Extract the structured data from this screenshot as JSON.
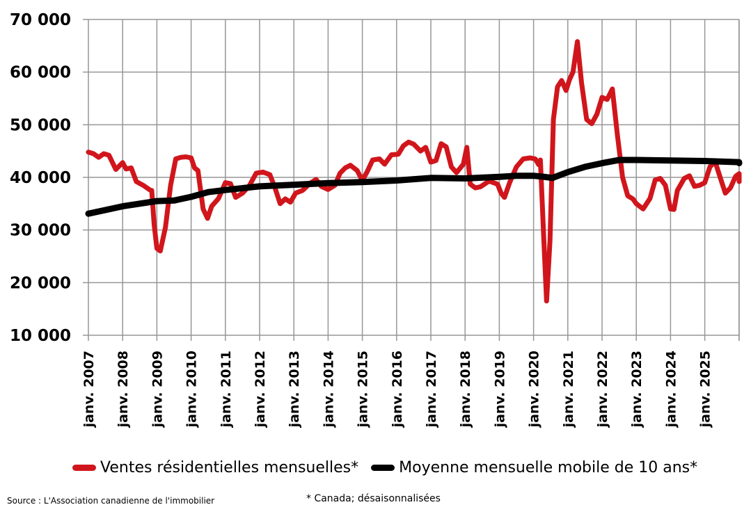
{
  "chart_data": {
    "type": "line",
    "title": "",
    "xlabel": "",
    "ylabel": "",
    "ylim": [
      10000,
      70000
    ],
    "yticks": [
      10000,
      20000,
      30000,
      40000,
      50000,
      60000,
      70000
    ],
    "ytick_labels": [
      "10 000",
      "20 000",
      "30 000",
      "40 000",
      "50 000",
      "60 000",
      "70 000"
    ],
    "xtick_labels": [
      "janv. 2007",
      "janv. 2008",
      "janv. 2009",
      "janv. 2010",
      "janv. 2011",
      "janv. 2012",
      "janv. 2013",
      "janv. 2014",
      "janv. 2015",
      "janv. 2016",
      "janv. 2017",
      "janv. 2018",
      "janv. 2019",
      "janv. 2020",
      "janv. 2021",
      "janv. 2022",
      "janv. 2023",
      "janv. 2024",
      "janv. 2025"
    ],
    "grid": true,
    "legend_position": "bottom",
    "x_start": "2007-01",
    "x_end": "2025-12",
    "series": [
      {
        "name": "Ventes résidentielles mensuelles*",
        "color": "#d0161c",
        "points": [
          [
            2007.0,
            44800
          ],
          [
            2007.15,
            44500
          ],
          [
            2007.3,
            43800
          ],
          [
            2007.45,
            44500
          ],
          [
            2007.6,
            44200
          ],
          [
            2007.8,
            41500
          ],
          [
            2008.0,
            42800
          ],
          [
            2008.1,
            41600
          ],
          [
            2008.25,
            41800
          ],
          [
            2008.4,
            39200
          ],
          [
            2008.6,
            38500
          ],
          [
            2008.8,
            37600
          ],
          [
            2008.85,
            37500
          ],
          [
            2008.92,
            31000
          ],
          [
            2009.0,
            26500
          ],
          [
            2009.1,
            26000
          ],
          [
            2009.25,
            30500
          ],
          [
            2009.4,
            38500
          ],
          [
            2009.55,
            43500
          ],
          [
            2009.7,
            43800
          ],
          [
            2009.85,
            43900
          ],
          [
            2010.0,
            43700
          ],
          [
            2010.1,
            41800
          ],
          [
            2010.2,
            41300
          ],
          [
            2010.35,
            34000
          ],
          [
            2010.48,
            32200
          ],
          [
            2010.6,
            34500
          ],
          [
            2010.8,
            36000
          ],
          [
            2011.0,
            39000
          ],
          [
            2011.15,
            38800
          ],
          [
            2011.3,
            36200
          ],
          [
            2011.5,
            37000
          ],
          [
            2011.7,
            38400
          ],
          [
            2011.9,
            40800
          ],
          [
            2012.1,
            41000
          ],
          [
            2012.3,
            40500
          ],
          [
            2012.45,
            38000
          ],
          [
            2012.6,
            35000
          ],
          [
            2012.75,
            35900
          ],
          [
            2012.9,
            35300
          ],
          [
            2013.05,
            37000
          ],
          [
            2013.25,
            37500
          ],
          [
            2013.5,
            39000
          ],
          [
            2013.65,
            39600
          ],
          [
            2013.8,
            38300
          ],
          [
            2014.0,
            37700
          ],
          [
            2014.2,
            38500
          ],
          [
            2014.35,
            40800
          ],
          [
            2014.5,
            41800
          ],
          [
            2014.65,
            42300
          ],
          [
            2014.85,
            41300
          ],
          [
            2015.0,
            39400
          ],
          [
            2015.15,
            41200
          ],
          [
            2015.3,
            43300
          ],
          [
            2015.5,
            43500
          ],
          [
            2015.65,
            42500
          ],
          [
            2015.85,
            44300
          ],
          [
            2016.05,
            44400
          ],
          [
            2016.2,
            46000
          ],
          [
            2016.35,
            46700
          ],
          [
            2016.5,
            46300
          ],
          [
            2016.7,
            45000
          ],
          [
            2016.85,
            45700
          ],
          [
            2017.0,
            42900
          ],
          [
            2017.15,
            43200
          ],
          [
            2017.3,
            46400
          ],
          [
            2017.45,
            45800
          ],
          [
            2017.6,
            42000
          ],
          [
            2017.75,
            40900
          ],
          [
            2017.95,
            42500
          ],
          [
            2018.05,
            45700
          ],
          [
            2018.15,
            38700
          ],
          [
            2018.3,
            38000
          ],
          [
            2018.45,
            38200
          ],
          [
            2018.7,
            39300
          ],
          [
            2018.95,
            38700
          ],
          [
            2019.05,
            37000
          ],
          [
            2019.15,
            36200
          ],
          [
            2019.3,
            39000
          ],
          [
            2019.5,
            42000
          ],
          [
            2019.7,
            43500
          ],
          [
            2019.9,
            43700
          ],
          [
            2020.05,
            43500
          ],
          [
            2020.15,
            42400
          ],
          [
            2020.2,
            43300
          ],
          [
            2020.3,
            28000
          ],
          [
            2020.38,
            16500
          ],
          [
            2020.48,
            28000
          ],
          [
            2020.58,
            51000
          ],
          [
            2020.7,
            57200
          ],
          [
            2020.82,
            58400
          ],
          [
            2020.95,
            56500
          ],
          [
            2021.05,
            58600
          ],
          [
            2021.15,
            60000
          ],
          [
            2021.28,
            65800
          ],
          [
            2021.4,
            58000
          ],
          [
            2021.55,
            51000
          ],
          [
            2021.7,
            50200
          ],
          [
            2021.85,
            52000
          ],
          [
            2022.0,
            55200
          ],
          [
            2022.15,
            54800
          ],
          [
            2022.3,
            56800
          ],
          [
            2022.45,
            48000
          ],
          [
            2022.6,
            40000
          ],
          [
            2022.75,
            36500
          ],
          [
            2022.9,
            35900
          ],
          [
            2023.0,
            35000
          ],
          [
            2023.1,
            34500
          ],
          [
            2023.2,
            34000
          ],
          [
            2023.4,
            36000
          ],
          [
            2023.55,
            39500
          ],
          [
            2023.7,
            39800
          ],
          [
            2023.85,
            38500
          ],
          [
            2024.0,
            34000
          ],
          [
            2024.1,
            33900
          ],
          [
            2024.2,
            37500
          ],
          [
            2024.4,
            39800
          ],
          [
            2024.55,
            40300
          ],
          [
            2024.7,
            38300
          ],
          [
            2024.85,
            38500
          ],
          [
            2025.0,
            39000
          ],
          [
            2025.15,
            42000
          ],
          [
            2025.3,
            43000
          ],
          [
            2025.45,
            40000
          ],
          [
            2025.6,
            37000
          ],
          [
            2025.75,
            38000
          ],
          [
            2025.9,
            40200
          ],
          [
            2026.05,
            40700
          ],
          [
            2026.15,
            40000
          ],
          [
            2026.3,
            40500
          ],
          [
            2026.4,
            39200
          ]
        ]
      },
      {
        "name": "Moyenne mensuelle mobile de 10 ans*",
        "color": "#000000",
        "points": [
          [
            2007.0,
            33100
          ],
          [
            2008.0,
            34500
          ],
          [
            2009.0,
            35500
          ],
          [
            2009.5,
            35600
          ],
          [
            2010.0,
            36300
          ],
          [
            2010.5,
            37200
          ],
          [
            2011.0,
            37600
          ],
          [
            2012.0,
            38300
          ],
          [
            2013.0,
            38600
          ],
          [
            2014.0,
            38900
          ],
          [
            2015.0,
            39100
          ],
          [
            2016.0,
            39400
          ],
          [
            2017.0,
            39900
          ],
          [
            2018.0,
            39800
          ],
          [
            2019.0,
            40100
          ],
          [
            2019.5,
            40300
          ],
          [
            2020.0,
            40300
          ],
          [
            2020.3,
            40100
          ],
          [
            2020.55,
            39900
          ],
          [
            2021.0,
            41000
          ],
          [
            2021.5,
            42000
          ],
          [
            2022.0,
            42700
          ],
          [
            2022.5,
            43300
          ],
          [
            2023.0,
            43300
          ],
          [
            2024.0,
            43200
          ],
          [
            2025.0,
            43100
          ],
          [
            2026.0,
            42900
          ],
          [
            2026.4,
            42700
          ]
        ]
      }
    ]
  },
  "legend": {
    "items": [
      {
        "label": "Ventes résidentielles mensuelles*",
        "color": "#d0161c"
      },
      {
        "label": "Moyenne mensuelle mobile de 10 ans*",
        "color": "#000000"
      }
    ]
  },
  "footer": {
    "source": "Source : L'Association canadienne de l'immobilier",
    "note": "* Canada; désaisonnalisées"
  }
}
